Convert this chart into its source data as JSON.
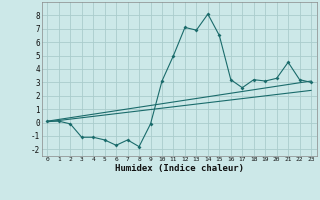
{
  "x": [
    0,
    1,
    2,
    3,
    4,
    5,
    6,
    7,
    8,
    9,
    10,
    11,
    12,
    13,
    14,
    15,
    16,
    17,
    18,
    19,
    20,
    21,
    22,
    23
  ],
  "y_main": [
    0.1,
    0.1,
    -0.1,
    -1.1,
    -1.1,
    -1.3,
    -1.7,
    -1.3,
    -1.8,
    -0.1,
    3.1,
    5.0,
    7.1,
    6.9,
    8.1,
    6.5,
    3.2,
    2.6,
    3.2,
    3.1,
    3.3,
    4.5,
    3.2,
    3.0
  ],
  "regression_line1": [
    [
      0,
      0.05
    ],
    [
      23,
      2.4
    ]
  ],
  "regression_line2": [
    [
      0,
      0.1
    ],
    [
      23,
      3.1
    ]
  ],
  "bg_color": "#cce8e8",
  "grid_color": "#aacccc",
  "line_color": "#1a6b6b",
  "xlabel": "Humidex (Indice chaleur)",
  "ylim": [
    -2.5,
    9.0
  ],
  "xlim": [
    -0.5,
    23.5
  ],
  "yticks": [
    -2,
    -1,
    0,
    1,
    2,
    3,
    4,
    5,
    6,
    7,
    8
  ],
  "xticks": [
    0,
    1,
    2,
    3,
    4,
    5,
    6,
    7,
    8,
    9,
    10,
    11,
    12,
    13,
    14,
    15,
    16,
    17,
    18,
    19,
    20,
    21,
    22,
    23
  ]
}
